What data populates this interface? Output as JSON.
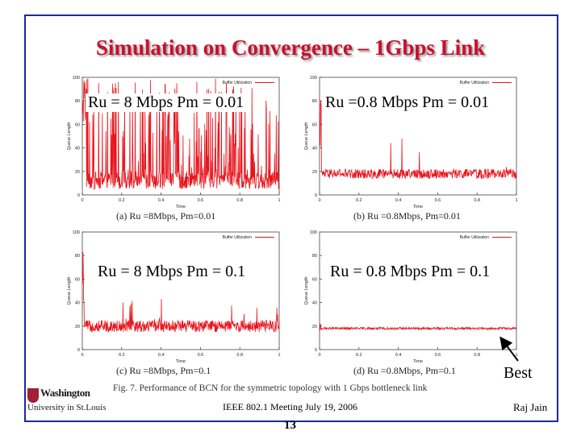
{
  "slide": {
    "title": "Simulation on Convergence – 1Gbps Link",
    "footer_meeting": "IEEE 802.1 Meeting  July 19, 2006",
    "author": "Raj Jain",
    "page_number": "13",
    "best_label": "Best",
    "figure_caption": "Fig. 7.   Performance of BCN for the symmetric topology with 1 Gbps bottleneck link",
    "logo_line1": "Washington",
    "logo_line2": "University in St.Louis",
    "colors": {
      "title": "#c8102e",
      "series": "#e8141c",
      "frame": "#1a2a9a"
    }
  },
  "chart_data": [
    {
      "type": "line",
      "id": "a",
      "overlay_label": "Ru = 8 Mbps Pm = 0.01",
      "caption": "(a) Ru =8Mbps, Pm=0.01",
      "legend": "Buffer Utilization",
      "xlabel": "Time",
      "ylabel": "Queue Length",
      "xlim": [
        0,
        1
      ],
      "ylim": [
        0,
        100
      ],
      "xticks": [
        "0",
        "0.2",
        "0.4",
        "0.6",
        "0.8",
        "1"
      ],
      "yticks": [
        "0",
        "20",
        "40",
        "60",
        "80",
        "100"
      ],
      "series": [
        {
          "name": "Buffer Utilization",
          "pattern": "bursty",
          "baseline": 5,
          "spread": 15,
          "peak": 100,
          "spikes": 140
        }
      ]
    },
    {
      "type": "line",
      "id": "b",
      "overlay_label": "Ru =0.8 Mbps Pm = 0.01",
      "caption": "(b) Ru =0.8Mbps, Pm=0.01",
      "legend": "Buffer Utilization",
      "xlabel": "Time",
      "ylabel": "Queue Length",
      "xlim": [
        0,
        1
      ],
      "ylim": [
        0,
        100
      ],
      "xticks": [
        "0",
        "0.2",
        "0.4",
        "0.6",
        "0.8",
        "1"
      ],
      "yticks": [
        "0",
        "20",
        "40",
        "60",
        "80",
        "100"
      ],
      "series": [
        {
          "name": "Buffer Utilization",
          "pattern": "steady",
          "baseline": 18,
          "spread": 8,
          "peak": 70,
          "spikes": 6
        }
      ]
    },
    {
      "type": "line",
      "id": "c",
      "overlay_label": "Ru = 8 Mbps Pm = 0.1",
      "caption": "(c) Ru =8Mbps, Pm=0.1",
      "legend": "Buffer Utilization",
      "xlabel": "Time",
      "ylabel": "Queue Length",
      "xlim": [
        0,
        1
      ],
      "ylim": [
        0,
        100
      ],
      "xticks": [
        "0",
        "0.2",
        "0.4",
        "0.6",
        "0.8",
        "1"
      ],
      "yticks": [
        "0",
        "20",
        "40",
        "60",
        "80",
        "100"
      ],
      "series": [
        {
          "name": "Buffer Utilization",
          "pattern": "steady",
          "baseline": 20,
          "spread": 10,
          "peak": 45,
          "spikes": 20
        }
      ]
    },
    {
      "type": "line",
      "id": "d",
      "overlay_label": "Ru = 0.8 Mbps Pm = 0.1",
      "caption": "(d) Ru =0.8Mbps, Pm=0.1",
      "legend": "Buffer Utilization",
      "xlabel": "Time",
      "ylabel": "Queue Length",
      "xlim": [
        0,
        1
      ],
      "ylim": [
        0,
        100
      ],
      "xticks": [
        "0",
        "0.2",
        "0.4",
        "0.6",
        "0.8",
        "1"
      ],
      "yticks": [
        "0",
        "20",
        "40",
        "60",
        "80",
        "100"
      ],
      "series": [
        {
          "name": "Buffer Utilization",
          "pattern": "flat",
          "baseline": 18,
          "spread": 2,
          "peak": 22,
          "spikes": 0
        }
      ]
    }
  ]
}
